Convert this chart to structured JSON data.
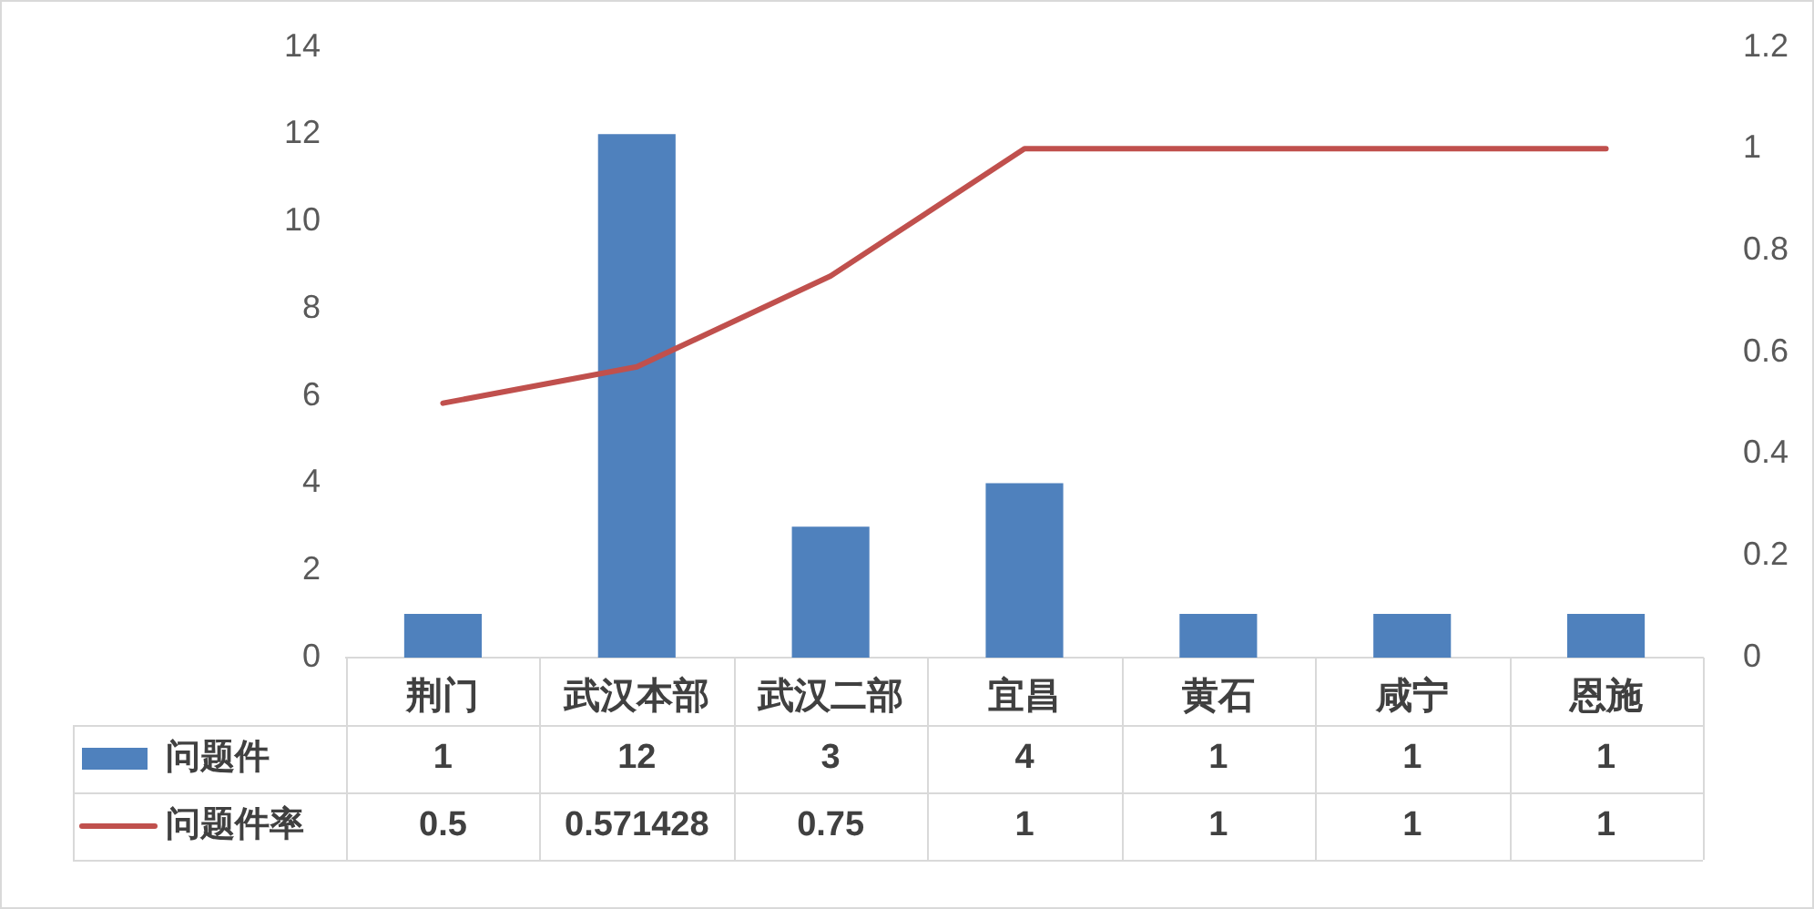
{
  "chart_data": {
    "type": "bar",
    "categories": [
      "荆门",
      "武汉本部",
      "武汉二部",
      "宜昌",
      "黄石",
      "咸宁",
      "恩施"
    ],
    "series": [
      {
        "name": "问题件",
        "color": "#4f81bd",
        "values": [
          1,
          12,
          3,
          4,
          1,
          1,
          1
        ]
      },
      {
        "name": "问题件率",
        "type": "line",
        "axis": "y2",
        "color": "#c0504d",
        "values": [
          0.5,
          0.571428,
          0.75,
          1,
          1,
          1,
          1
        ]
      }
    ],
    "ylim": [
      0,
      14
    ],
    "yticks": [
      0,
      2,
      4,
      6,
      8,
      10,
      12,
      14
    ],
    "y2lim": [
      0,
      1.2
    ],
    "y2ticks": [
      0,
      0.2,
      0.4,
      0.6,
      0.8,
      1,
      1.2
    ],
    "grid": false,
    "legend": "bottom left",
    "data_labels": true,
    "marker": "none"
  }
}
